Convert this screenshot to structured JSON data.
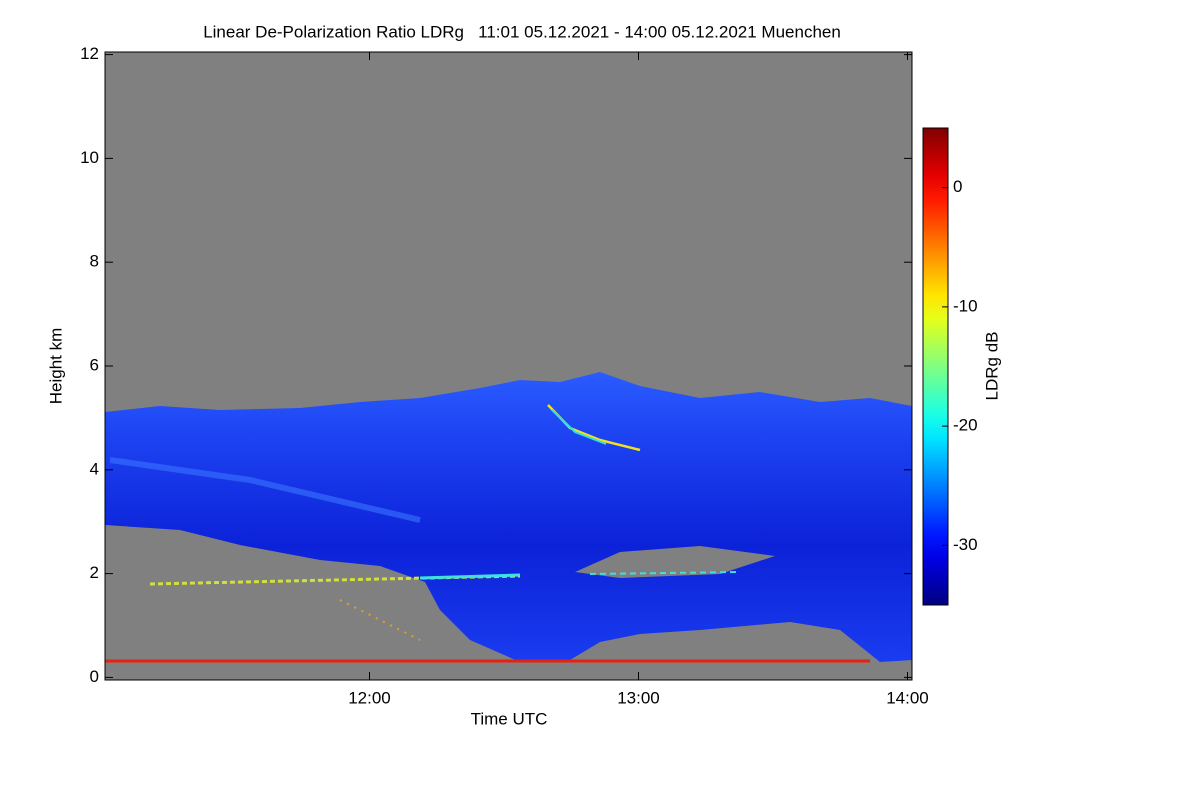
{
  "chart_data": {
    "type": "heatmap",
    "title": "Linear De-Polarization Ratio LDRg   11:01 05.12.2021 - 14:00 05.12.2021 Muenchen",
    "x_label": "Time UTC",
    "y_label": "Height km",
    "colorbar_label": "LDRg dB",
    "xlim": [
      11.0167,
      14.0167
    ],
    "xticks": [
      {
        "value": 12,
        "label": "12:00"
      },
      {
        "value": 13,
        "label": "13:00"
      },
      {
        "value": 14,
        "label": "14:00"
      }
    ],
    "ylim": [
      -0.05,
      12.05
    ],
    "yticks": [
      0,
      2,
      4,
      6,
      8,
      10,
      12
    ],
    "clim": [
      -35,
      5
    ],
    "cticks": [
      0,
      -10,
      -20,
      -30
    ],
    "colormap": "jet",
    "no_data_color": "#808080"
  }
}
